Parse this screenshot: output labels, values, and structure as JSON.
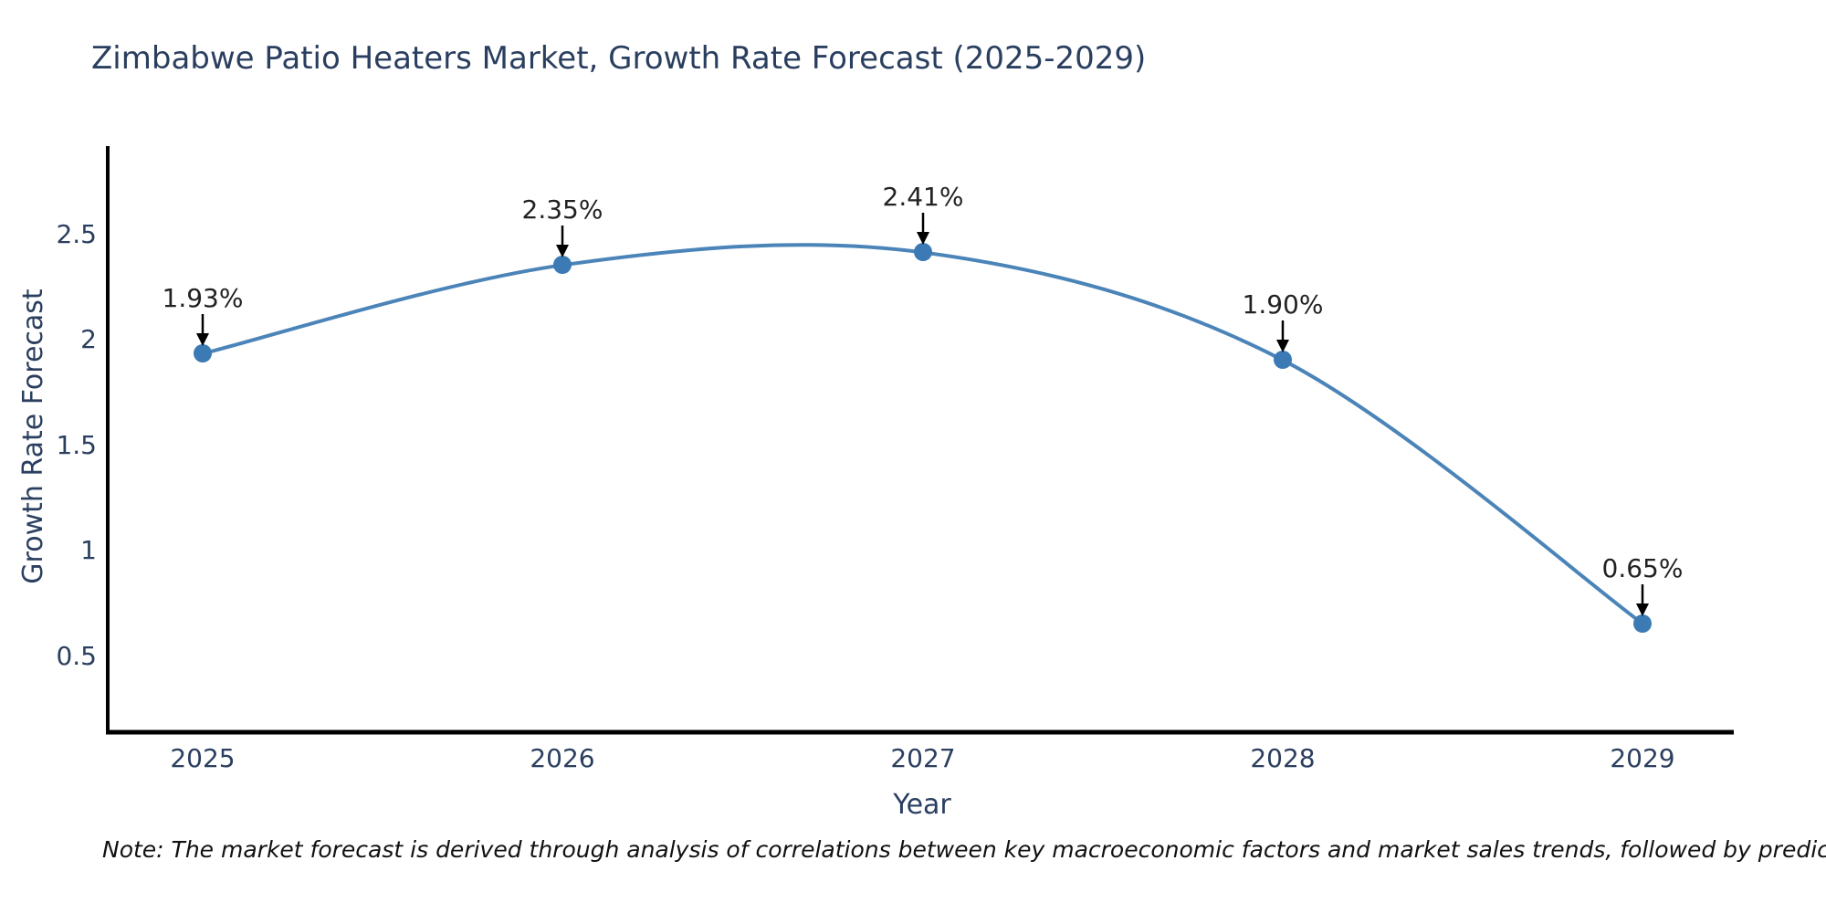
{
  "title": "Zimbabwe Patio Heaters Market, Growth Rate Forecast (2025-2029)",
  "note": "Note: The market forecast is derived through analysis of correlations between key macroeconomic factors and market sales trends, followed by predictive modeling to project future sales",
  "chart_data": {
    "type": "line",
    "title": "Zimbabwe Patio Heaters Market, Growth Rate Forecast (2025-2029)",
    "xlabel": "Year",
    "ylabel": "Growth Rate Forecast",
    "x": [
      2025,
      2026,
      2027,
      2028,
      2029
    ],
    "xticks": [
      "2025",
      "2026",
      "2027",
      "2028",
      "2029"
    ],
    "yticks": [
      "0.5",
      "1",
      "1.5",
      "2",
      "2.5"
    ],
    "ylim": [
      0.13,
      2.92
    ],
    "xlim": [
      2024.74,
      2029.25
    ],
    "grid": false,
    "line_shape": "spline",
    "legend_position": "none",
    "series": [
      {
        "name": "Growth Rate Forecast",
        "values": [
          1.93,
          2.35,
          2.41,
          1.9,
          0.65
        ],
        "point_labels": [
          "1.93%",
          "2.35%",
          "2.41%",
          "1.90%",
          "0.65%"
        ]
      }
    ],
    "colors": {
      "line": "#4b84b8",
      "marker": "#3c7ab5",
      "arrow": "#000000",
      "axis_line": "#000000",
      "title_text": "#2a3f5f",
      "axis_text": "#2a3f5f",
      "annotation_text": "#222222",
      "background": "#ffffff"
    }
  }
}
